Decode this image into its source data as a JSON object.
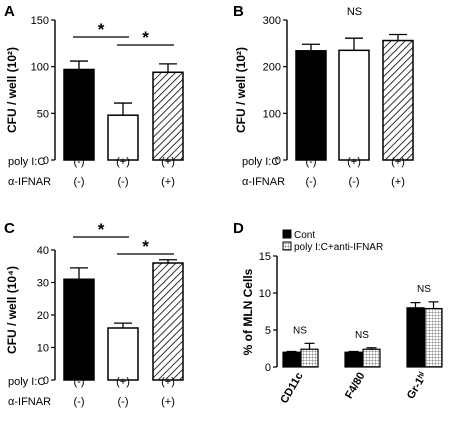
{
  "chart_data": [
    {
      "panel": "A",
      "type": "bar",
      "ylabel": "CFU / well (10²)",
      "ylim": [
        0,
        150
      ],
      "yticks": [
        "0",
        "50",
        "100",
        "150"
      ],
      "categories": [
        "1",
        "2",
        "3"
      ],
      "values": [
        97,
        48,
        94
      ],
      "errors": [
        9,
        13,
        9
      ],
      "fills": [
        "solid",
        "white",
        "hatch"
      ],
      "conditions": [
        {
          "label": "poly I:C",
          "values": [
            "(-)",
            "(+)",
            "(+)"
          ]
        },
        {
          "label": "α-IFNAR",
          "values": [
            "(-)",
            "(-)",
            "(+)"
          ]
        }
      ],
      "annotations": [
        {
          "text": "*",
          "between": [
            0,
            1
          ]
        },
        {
          "text": "*",
          "between": [
            1,
            2
          ]
        }
      ]
    },
    {
      "panel": "B",
      "type": "bar",
      "ylabel": "CFU / well (10²)",
      "ylim": [
        0,
        300
      ],
      "yticks": [
        "0",
        "100",
        "200",
        "300"
      ],
      "categories": [
        "1",
        "2",
        "3"
      ],
      "values": [
        234,
        235,
        256
      ],
      "errors": [
        14,
        26,
        13
      ],
      "fills": [
        "solid",
        "white",
        "hatch"
      ],
      "conditions": [
        {
          "label": "poly I:C",
          "values": [
            "(-)",
            "(+)",
            "(+)"
          ]
        },
        {
          "label": "α-IFNAR",
          "values": [
            "(-)",
            "(-)",
            "(+)"
          ]
        }
      ],
      "annotations": [
        {
          "text": "NS",
          "between": [
            0,
            2
          ]
        }
      ]
    },
    {
      "panel": "C",
      "type": "bar",
      "ylabel": "CFU / well (10⁴)",
      "ylim": [
        0,
        40
      ],
      "yticks": [
        "0",
        "10",
        "20",
        "30",
        "40"
      ],
      "categories": [
        "1",
        "2",
        "3"
      ],
      "values": [
        31,
        16,
        36
      ],
      "errors": [
        3.5,
        1.5,
        1
      ],
      "fills": [
        "solid",
        "white",
        "hatch"
      ],
      "conditions": [
        {
          "label": "poly I:C",
          "values": [
            "(-)",
            "(+)",
            "(+)"
          ]
        },
        {
          "label": "α-IFNAR",
          "values": [
            "(-)",
            "(-)",
            "(+)"
          ]
        }
      ],
      "annotations": [
        {
          "text": "*",
          "between": [
            0,
            1
          ]
        },
        {
          "text": "*",
          "between": [
            1,
            2
          ]
        }
      ]
    },
    {
      "panel": "D",
      "type": "bar",
      "ylabel": "% of MLN Cells",
      "ylim": [
        0,
        15
      ],
      "yticks": [
        "0",
        "5",
        "10",
        "15"
      ],
      "categories": [
        "CD11c",
        "F4/80",
        "Gr-1ʰⁱ"
      ],
      "series": [
        {
          "name": "Cont",
          "fill": "solid",
          "values": [
            2.0,
            2.0,
            8.0
          ],
          "errors": [
            0.1,
            0.1,
            0.7
          ]
        },
        {
          "name": "poly I:C+anti-IFNAR",
          "fill": "grid",
          "values": [
            2.4,
            2.4,
            7.9
          ],
          "errors": [
            0.8,
            0.2,
            0.9
          ]
        }
      ],
      "annotations": [
        "NS",
        "NS",
        "NS"
      ]
    }
  ]
}
